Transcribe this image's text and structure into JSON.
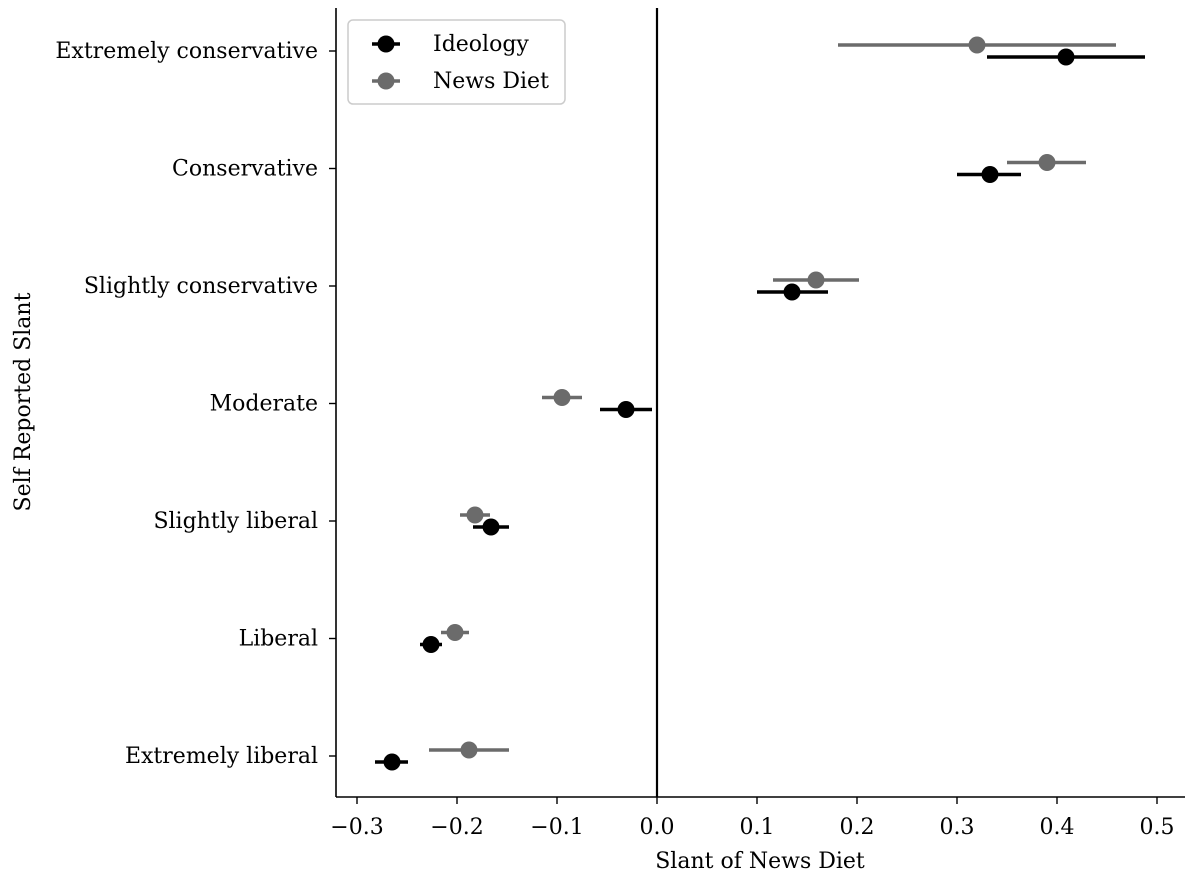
{
  "chart_data": {
    "type": "scatter",
    "subtype": "dot-plot-with-horizontal-error-bars",
    "title": "",
    "xlabel": "Slant of News Diet",
    "ylabel": "Self Reported Slant",
    "xlim": [
      -0.32,
      0.525
    ],
    "x_ticks": [
      -0.3,
      -0.2,
      -0.1,
      0.0,
      0.1,
      0.2,
      0.3,
      0.4,
      0.5
    ],
    "x_tick_labels": [
      "−0.3",
      "−0.2",
      "−0.1",
      "0.0",
      "0.1",
      "0.2",
      "0.3",
      "0.4",
      "0.5"
    ],
    "categories": [
      "Extremely conservative",
      "Conservative",
      "Slightly conservative",
      "Moderate",
      "Slightly liberal",
      "Liberal",
      "Extremely liberal"
    ],
    "reference_line_x": 0.0,
    "legend_position": "top-left",
    "grid": false,
    "series": [
      {
        "name": "Ideology",
        "color": "#000000",
        "values": [
          0.409,
          0.333,
          0.135,
          -0.031,
          -0.166,
          -0.226,
          -0.265
        ],
        "err_low": [
          0.33,
          0.3,
          0.1,
          -0.057,
          -0.184,
          -0.237,
          -0.282
        ],
        "err_high": [
          0.488,
          0.364,
          0.171,
          -0.005,
          -0.148,
          -0.215,
          -0.249
        ]
      },
      {
        "name": "News Diet",
        "color": "#6b6b6b",
        "values": [
          0.32,
          0.39,
          0.159,
          -0.095,
          -0.182,
          -0.202,
          -0.188
        ],
        "err_low": [
          0.181,
          0.35,
          0.116,
          -0.115,
          -0.197,
          -0.216,
          -0.228
        ],
        "err_high": [
          0.459,
          0.429,
          0.202,
          -0.075,
          -0.167,
          -0.188,
          -0.148
        ]
      }
    ]
  }
}
